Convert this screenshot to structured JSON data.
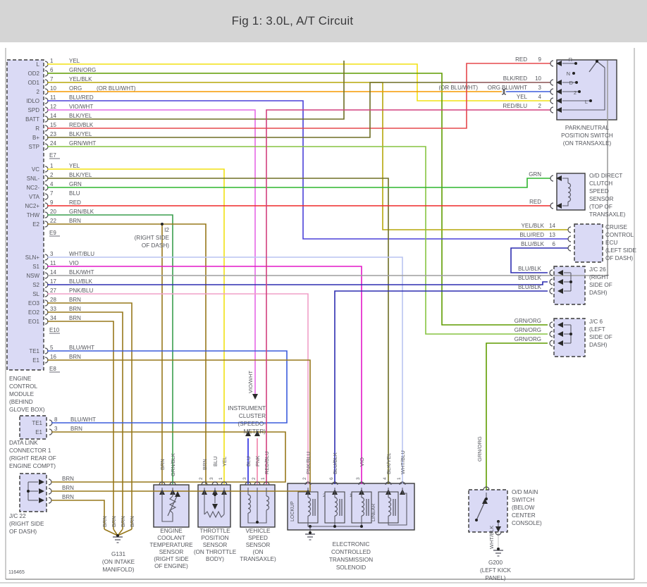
{
  "title": "Fig 1: 3.0L, A/T Circuit",
  "footer_code": "116465",
  "colors": {
    "YEL": "#f2e113",
    "GRN_ORG": "#5f9c00",
    "YEL_BLK": "#b5a709",
    "ORG": "#f59a00",
    "BLU_RED": "#4b41d8",
    "VIO_WHT": "#e668e6",
    "BLK_YEL": "#6e6e25",
    "RED_BLK": "#e5484d",
    "GRN_WHT": "#86c440",
    "GRN": "#2fb52f",
    "BLU": "#2727e0",
    "RED": "#ef2929",
    "GRN_BLK": "#3a9e4e",
    "BRN": "#97781c",
    "WHT_BLU": "#b9c4f2",
    "VIO": "#e318c8",
    "BLK_WHT": "#9e9e9e",
    "BLU_BLK": "#2d2db0",
    "PNK_BLU": "#f0a0c8",
    "PNK": "#f080a8",
    "RED_BLU": "#d2417e",
    "BLK_RED": "#8a5050",
    "BLU_WHT": "#3b5bdc",
    "WHT_BLK": "#d8d8d8",
    "box_fill": "#dadaf5",
    "box_stroke": "#3a3a3a",
    "label": "#54565c",
    "title_bg": "#d5d5d5"
  },
  "ecm": {
    "caption": [
      "ENGINE",
      "CONTROL",
      "MODULE",
      "(BEHIND",
      "GLOVE BOX)"
    ],
    "groups": [
      {
        "connector": "E7",
        "pins": [
          {
            "name": "L",
            "num": "1",
            "color": "YEL"
          },
          {
            "name": "OD2",
            "num": "6",
            "color": "GRN/ORG"
          },
          {
            "name": "OD1",
            "num": "7",
            "color": "YEL/BLK"
          },
          {
            "name": "2",
            "num": "10",
            "color": "ORG",
            "extra": "(OR BLU/WHT)"
          },
          {
            "name": "IDLO",
            "num": "11",
            "color": "BLU/RED"
          },
          {
            "name": "SPD",
            "num": "12",
            "color": "VIO/WHT"
          },
          {
            "name": "BATT",
            "num": "14",
            "color": "BLK/YEL"
          },
          {
            "name": "R",
            "num": "15",
            "color": "RED/BLK"
          },
          {
            "name": "B+",
            "num": "23",
            "color": "BLK/YEL"
          },
          {
            "name": "STP",
            "num": "24",
            "color": "GRN/WHT"
          }
        ]
      },
      {
        "connector": "E9",
        "pins": [
          {
            "name": "VC",
            "num": "1",
            "color": "YEL"
          },
          {
            "name": "SNL-",
            "num": "2",
            "color": "BLK/YEL"
          },
          {
            "name": "NC2-",
            "num": "4",
            "color": "GRN"
          },
          {
            "name": "VTA",
            "num": "7",
            "color": "BLU"
          },
          {
            "name": "NC2+",
            "num": "9",
            "color": "RED"
          },
          {
            "name": "THW",
            "num": "20",
            "color": "GRN/BLK"
          },
          {
            "name": "E2",
            "num": "22",
            "color": "BRN"
          }
        ]
      },
      {
        "connector": "E10",
        "pins": [
          {
            "name": "SLN+",
            "num": "3",
            "color": "WHT/BLU"
          },
          {
            "name": "S1",
            "num": "11",
            "color": "VIO"
          },
          {
            "name": "NSW",
            "num": "14",
            "color": "BLK/WHT"
          },
          {
            "name": "S2",
            "num": "17",
            "color": "BLU/BLK"
          },
          {
            "name": "SL",
            "num": "27",
            "color": "PNK/BLU"
          },
          {
            "name": "EO3",
            "num": "28",
            "color": "BRN"
          },
          {
            "name": "EO2",
            "num": "33",
            "color": "BRN"
          },
          {
            "name": "EO1",
            "num": "34",
            "color": "BRN"
          }
        ]
      },
      {
        "connector": "E8",
        "pins": [
          {
            "name": "TE1",
            "num": "5",
            "color": "BLU/WHT"
          },
          {
            "name": "E1",
            "num": "16",
            "color": "BRN"
          }
        ]
      }
    ]
  },
  "i2_note": [
    "I2",
    "(RIGHT SIDE",
    "OF DASH)"
  ],
  "dlc": {
    "caption": [
      "DATA LINK",
      "CONNECTOR 1",
      "(RIGHT REAR OF",
      "ENGINE COMPT)"
    ],
    "pins": [
      {
        "name": "TE1",
        "num": "8",
        "color": "BLU/WHT"
      },
      {
        "name": "E1",
        "num": "3",
        "color": "BRN"
      }
    ]
  },
  "jc22": {
    "caption": [
      "J/C 22",
      "(RIGHT SIDE",
      "OF DASH)"
    ],
    "wires": [
      "BRN",
      "BRN",
      "BRN"
    ]
  },
  "pnp": {
    "caption": [
      "PARK/NEUTRAL",
      "POSITION SWITCH",
      "(ON TRANSAXLE)"
    ],
    "positions": [
      "R",
      "N",
      "D",
      "2",
      "L"
    ],
    "pins": [
      {
        "color": "RED",
        "num": "9"
      },
      {
        "color": "BLK/RED",
        "num": "10"
      },
      {
        "color": "BLU/WHT",
        "num": "3"
      },
      {
        "color": "YEL",
        "num": "4"
      },
      {
        "color": "RED/BLU",
        "num": "2"
      }
    ],
    "alt_label": "(OR BLU/WHT)",
    "org_label": "ORG"
  },
  "od_sensor": {
    "caption": [
      "O/D DIRECT",
      "CLUTCH",
      "SPEED",
      "SENSOR",
      "(TOP OF",
      "TRANSAXLE)"
    ],
    "wires": [
      "GRN",
      "RED"
    ]
  },
  "cruise": {
    "caption": [
      "CRUISE",
      "CONTROL",
      "ECU",
      "(LEFT SIDE",
      "OF DASH)"
    ],
    "pins": [
      {
        "color": "YEL/BLK",
        "num": "14"
      },
      {
        "color": "BLU/RED",
        "num": "13"
      },
      {
        "color": "BLU/BLK",
        "num": "6"
      }
    ]
  },
  "jc26": {
    "caption": [
      "J/C 26",
      "(RIGHT",
      "SIDE OF",
      "DASH)"
    ],
    "wires": [
      "BLU/BLK",
      "BLU/BLK",
      "BLU/BLK"
    ]
  },
  "jc6": {
    "caption": [
      "J/C 6",
      "(LEFT",
      "SIDE OF",
      "DASH)"
    ],
    "wires": [
      "GRN/ORG",
      "GRN/ORG",
      "GRN/ORG"
    ]
  },
  "cluster": {
    "caption": [
      "INSTRUMENT",
      "CLUSTER",
      "(SPEEDO-",
      "METER)"
    ],
    "wire_in": "VIO/WHT"
  },
  "ect": {
    "caption": [
      "ENGINE",
      "COOLANT",
      "TEMPERATURE",
      "SENSOR",
      "(RIGHT SIDE",
      "OF ENGINE)"
    ],
    "wires": [
      "BRN",
      "GRN/BLK"
    ]
  },
  "tps": {
    "caption": [
      "THROTTLE",
      "POSITION",
      "SENSOR",
      "(ON THROTTLE",
      "BODY)"
    ],
    "pins": [
      {
        "num": "2",
        "color": "BRN"
      },
      {
        "num": "3",
        "color": "BLU"
      },
      {
        "num": "1",
        "color": "YEL"
      }
    ]
  },
  "vss": {
    "caption": [
      "VEHICLE",
      "SPEED",
      "SENSOR",
      "(ON",
      "TRANSAXLE)"
    ],
    "pins": [
      {
        "num": "3",
        "color": "BLU"
      },
      {
        "num": "2",
        "color": "PNK"
      },
      {
        "num": "1",
        "color": "RED/BLU"
      }
    ]
  },
  "solenoid": {
    "caption": [
      "ELECTRONIC",
      "CONTROLLED",
      "TRANSMISSION",
      "SOLENOID"
    ],
    "units": [
      "LOCKUP",
      "2",
      "1",
      "LINEAR"
    ],
    "pins": [
      {
        "num": "2",
        "color": "PNK/BLU"
      },
      {
        "num": "6",
        "color": "BLU/BLK"
      },
      {
        "num": "3",
        "color": "VIO"
      },
      {
        "num": "4",
        "color": "BLK/YEL"
      },
      {
        "num": "1",
        "color": "WHT/BLU"
      }
    ]
  },
  "od_switch": {
    "caption": [
      "O/D MAIN",
      "SWITCH",
      "(BELOW",
      "CENTER",
      "CONSOLE)"
    ],
    "wire_in": "GRN/ORG",
    "wire_out": "WHT/BLK"
  },
  "g131": {
    "caption": [
      "G131",
      "(ON INTAKE",
      "MANIFOLD)"
    ],
    "wires": [
      "BRN",
      "BRN",
      "BRN",
      "BRN"
    ]
  },
  "g200": {
    "caption": [
      "G200",
      "(LEFT KICK",
      "PANEL)"
    ]
  }
}
